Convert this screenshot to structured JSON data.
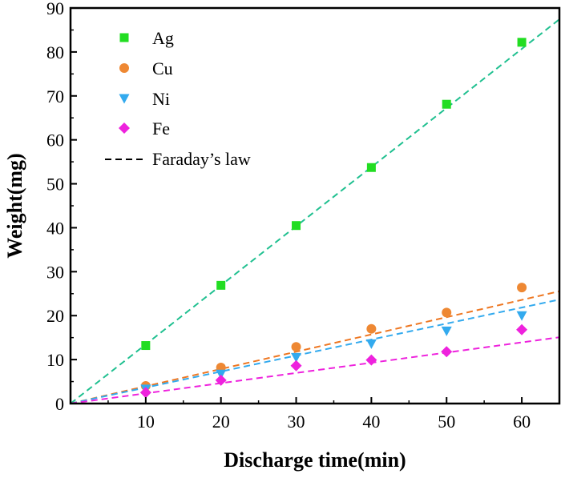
{
  "chart_data": {
    "type": "scatter",
    "title": "",
    "xlabel": "Discharge time(min)",
    "ylabel": "Weight(mg)",
    "xlim": [
      0,
      65
    ],
    "ylim": [
      0,
      90
    ],
    "x_ticks": [
      10,
      20,
      30,
      40,
      50,
      60
    ],
    "y_ticks": [
      0,
      10,
      20,
      30,
      40,
      50,
      60,
      70,
      80,
      90
    ],
    "grid": false,
    "legend_position": "top-left",
    "series": [
      {
        "name": "Ag",
        "marker": "square",
        "color": "#22dd22",
        "fit_color": "#20c090",
        "slope": 1.345,
        "x": [
          10,
          20,
          30,
          40,
          50,
          60
        ],
        "values": [
          13.2,
          26.9,
          40.5,
          53.7,
          68.1,
          82.2
        ]
      },
      {
        "name": "Cu",
        "marker": "circle",
        "color": "#ee8833",
        "fit_color": "#ee7722",
        "slope": 0.393,
        "x": [
          10,
          20,
          30,
          40,
          50,
          60
        ],
        "values": [
          4.0,
          8.2,
          12.9,
          17.0,
          20.7,
          26.4
        ]
      },
      {
        "name": "Ni",
        "marker": "triangle",
        "color": "#33aaee",
        "fit_color": "#33aaee",
        "slope": 0.364,
        "x": [
          10,
          20,
          30,
          40,
          50,
          60
        ],
        "values": [
          3.3,
          6.7,
          10.5,
          13.6,
          16.5,
          20.0
        ]
      },
      {
        "name": "Fe",
        "marker": "diamond",
        "color": "#ee22dd",
        "fit_color": "#ee22dd",
        "slope": 0.232,
        "x": [
          10,
          20,
          30,
          40,
          50,
          60
        ],
        "values": [
          2.5,
          5.3,
          8.6,
          9.9,
          11.8,
          16.8
        ]
      }
    ],
    "fit_legend_label": "Faraday’s law"
  }
}
